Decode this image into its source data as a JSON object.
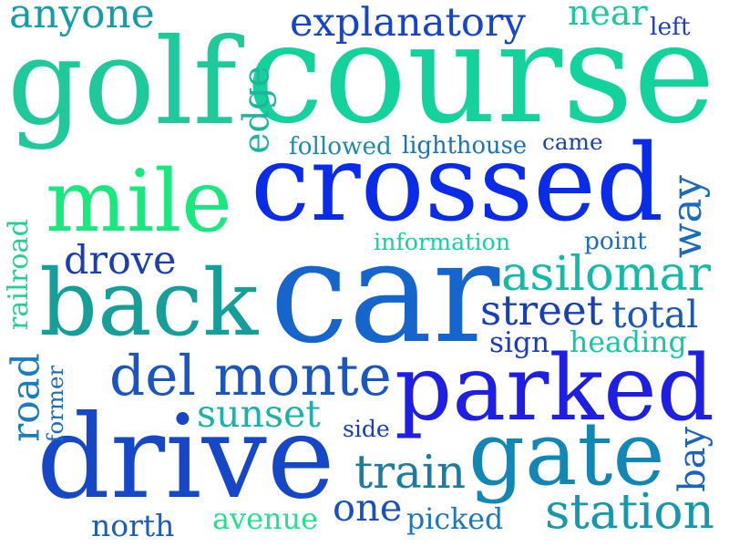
{
  "words": [
    {
      "id": "golf",
      "text": "golf",
      "color": "#1fc99a"
    },
    {
      "id": "course",
      "text": "course",
      "color": "#14d29b"
    },
    {
      "id": "crossed",
      "text": "crossed",
      "color": "#0a2be8"
    },
    {
      "id": "car",
      "text": "car",
      "color": "#1565cc"
    },
    {
      "id": "parked",
      "text": "parked",
      "color": "#1f1ee3"
    },
    {
      "id": "drive",
      "text": "drive",
      "color": "#1647c7"
    },
    {
      "id": "back",
      "text": "back",
      "color": "#169f98"
    },
    {
      "id": "mile",
      "text": "mile",
      "color": "#19e87f"
    },
    {
      "id": "gate",
      "text": "gate",
      "color": "#1286b5"
    },
    {
      "id": "del-monte",
      "text": "del monte",
      "color": "#1a55c2"
    },
    {
      "id": "asilomar",
      "text": "asilomar",
      "color": "#12bba5"
    },
    {
      "id": "street",
      "text": "street",
      "color": "#163fb8"
    },
    {
      "id": "total",
      "text": "total",
      "color": "#1a59b7"
    },
    {
      "id": "train",
      "text": "train",
      "color": "#1c7ba1"
    },
    {
      "id": "station",
      "text": "station",
      "color": "#1598ad"
    },
    {
      "id": "sunset",
      "text": "sunset",
      "color": "#1ab3a8"
    },
    {
      "id": "explanatory",
      "text": "explanatory",
      "color": "#1545cc"
    },
    {
      "id": "anyone",
      "text": "anyone",
      "color": "#169ca5"
    },
    {
      "id": "near",
      "text": "near",
      "color": "#1cc99d"
    },
    {
      "id": "left",
      "text": "left",
      "color": "#1f3fbd"
    },
    {
      "id": "edge",
      "text": "edge",
      "color": "#1fb59d"
    },
    {
      "id": "followed",
      "text": "followed",
      "color": "#1a8ab2"
    },
    {
      "id": "lighthouse",
      "text": "lighthouse",
      "color": "#1973b5"
    },
    {
      "id": "came",
      "text": "came",
      "color": "#1b3fb8"
    },
    {
      "id": "way",
      "text": "way",
      "color": "#1a6abf"
    },
    {
      "id": "information",
      "text": "information",
      "color": "#14d39f"
    },
    {
      "id": "point",
      "text": "point",
      "color": "#1a6dbf"
    },
    {
      "id": "drove",
      "text": "drove",
      "color": "#1c3fb0"
    },
    {
      "id": "railroad",
      "text": "railroad",
      "color": "#1fd28d"
    },
    {
      "id": "sign",
      "text": "sign",
      "color": "#1a3bbd"
    },
    {
      "id": "heading",
      "text": "heading",
      "color": "#14c7a5"
    },
    {
      "id": "road",
      "text": "road",
      "color": "#1a7bbf"
    },
    {
      "id": "former",
      "text": "former",
      "color": "#1b6bbb"
    },
    {
      "id": "side",
      "text": "side",
      "color": "#1b3bbd"
    },
    {
      "id": "bay",
      "text": "bay",
      "color": "#1a63bd"
    },
    {
      "id": "one",
      "text": "one",
      "color": "#1a4fc2"
    },
    {
      "id": "north",
      "text": "north",
      "color": "#1a5cc0"
    },
    {
      "id": "avenue",
      "text": "avenue",
      "color": "#1fe38a"
    },
    {
      "id": "picked",
      "text": "picked",
      "color": "#1a78bd"
    }
  ]
}
